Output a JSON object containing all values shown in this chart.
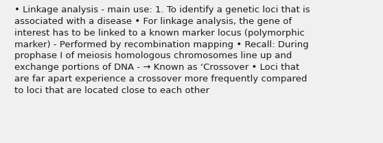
{
  "lines": [
    "• Linkage analysis - main use: 1. To identify a genetic loci that is",
    "associated with a disease • For linkage analysis, the gene of",
    "interest has to be linked to a known marker locus (polymorphic",
    "marker) - Performed by recombination mapping • Recall: During",
    "prophase I of meiosis homologous chromosomes line up and",
    "exchange portions of DNA - → Known as ‘Crossover • Loci that",
    "are far apart experience a crossover more frequently compared",
    "to loci that are located close to each other"
  ],
  "background_color": "#f0f0f0",
  "text_color": "#1a1a1a",
  "font_size": 9.5,
  "fig_width": 5.58,
  "fig_height": 2.09,
  "dpi": 100
}
